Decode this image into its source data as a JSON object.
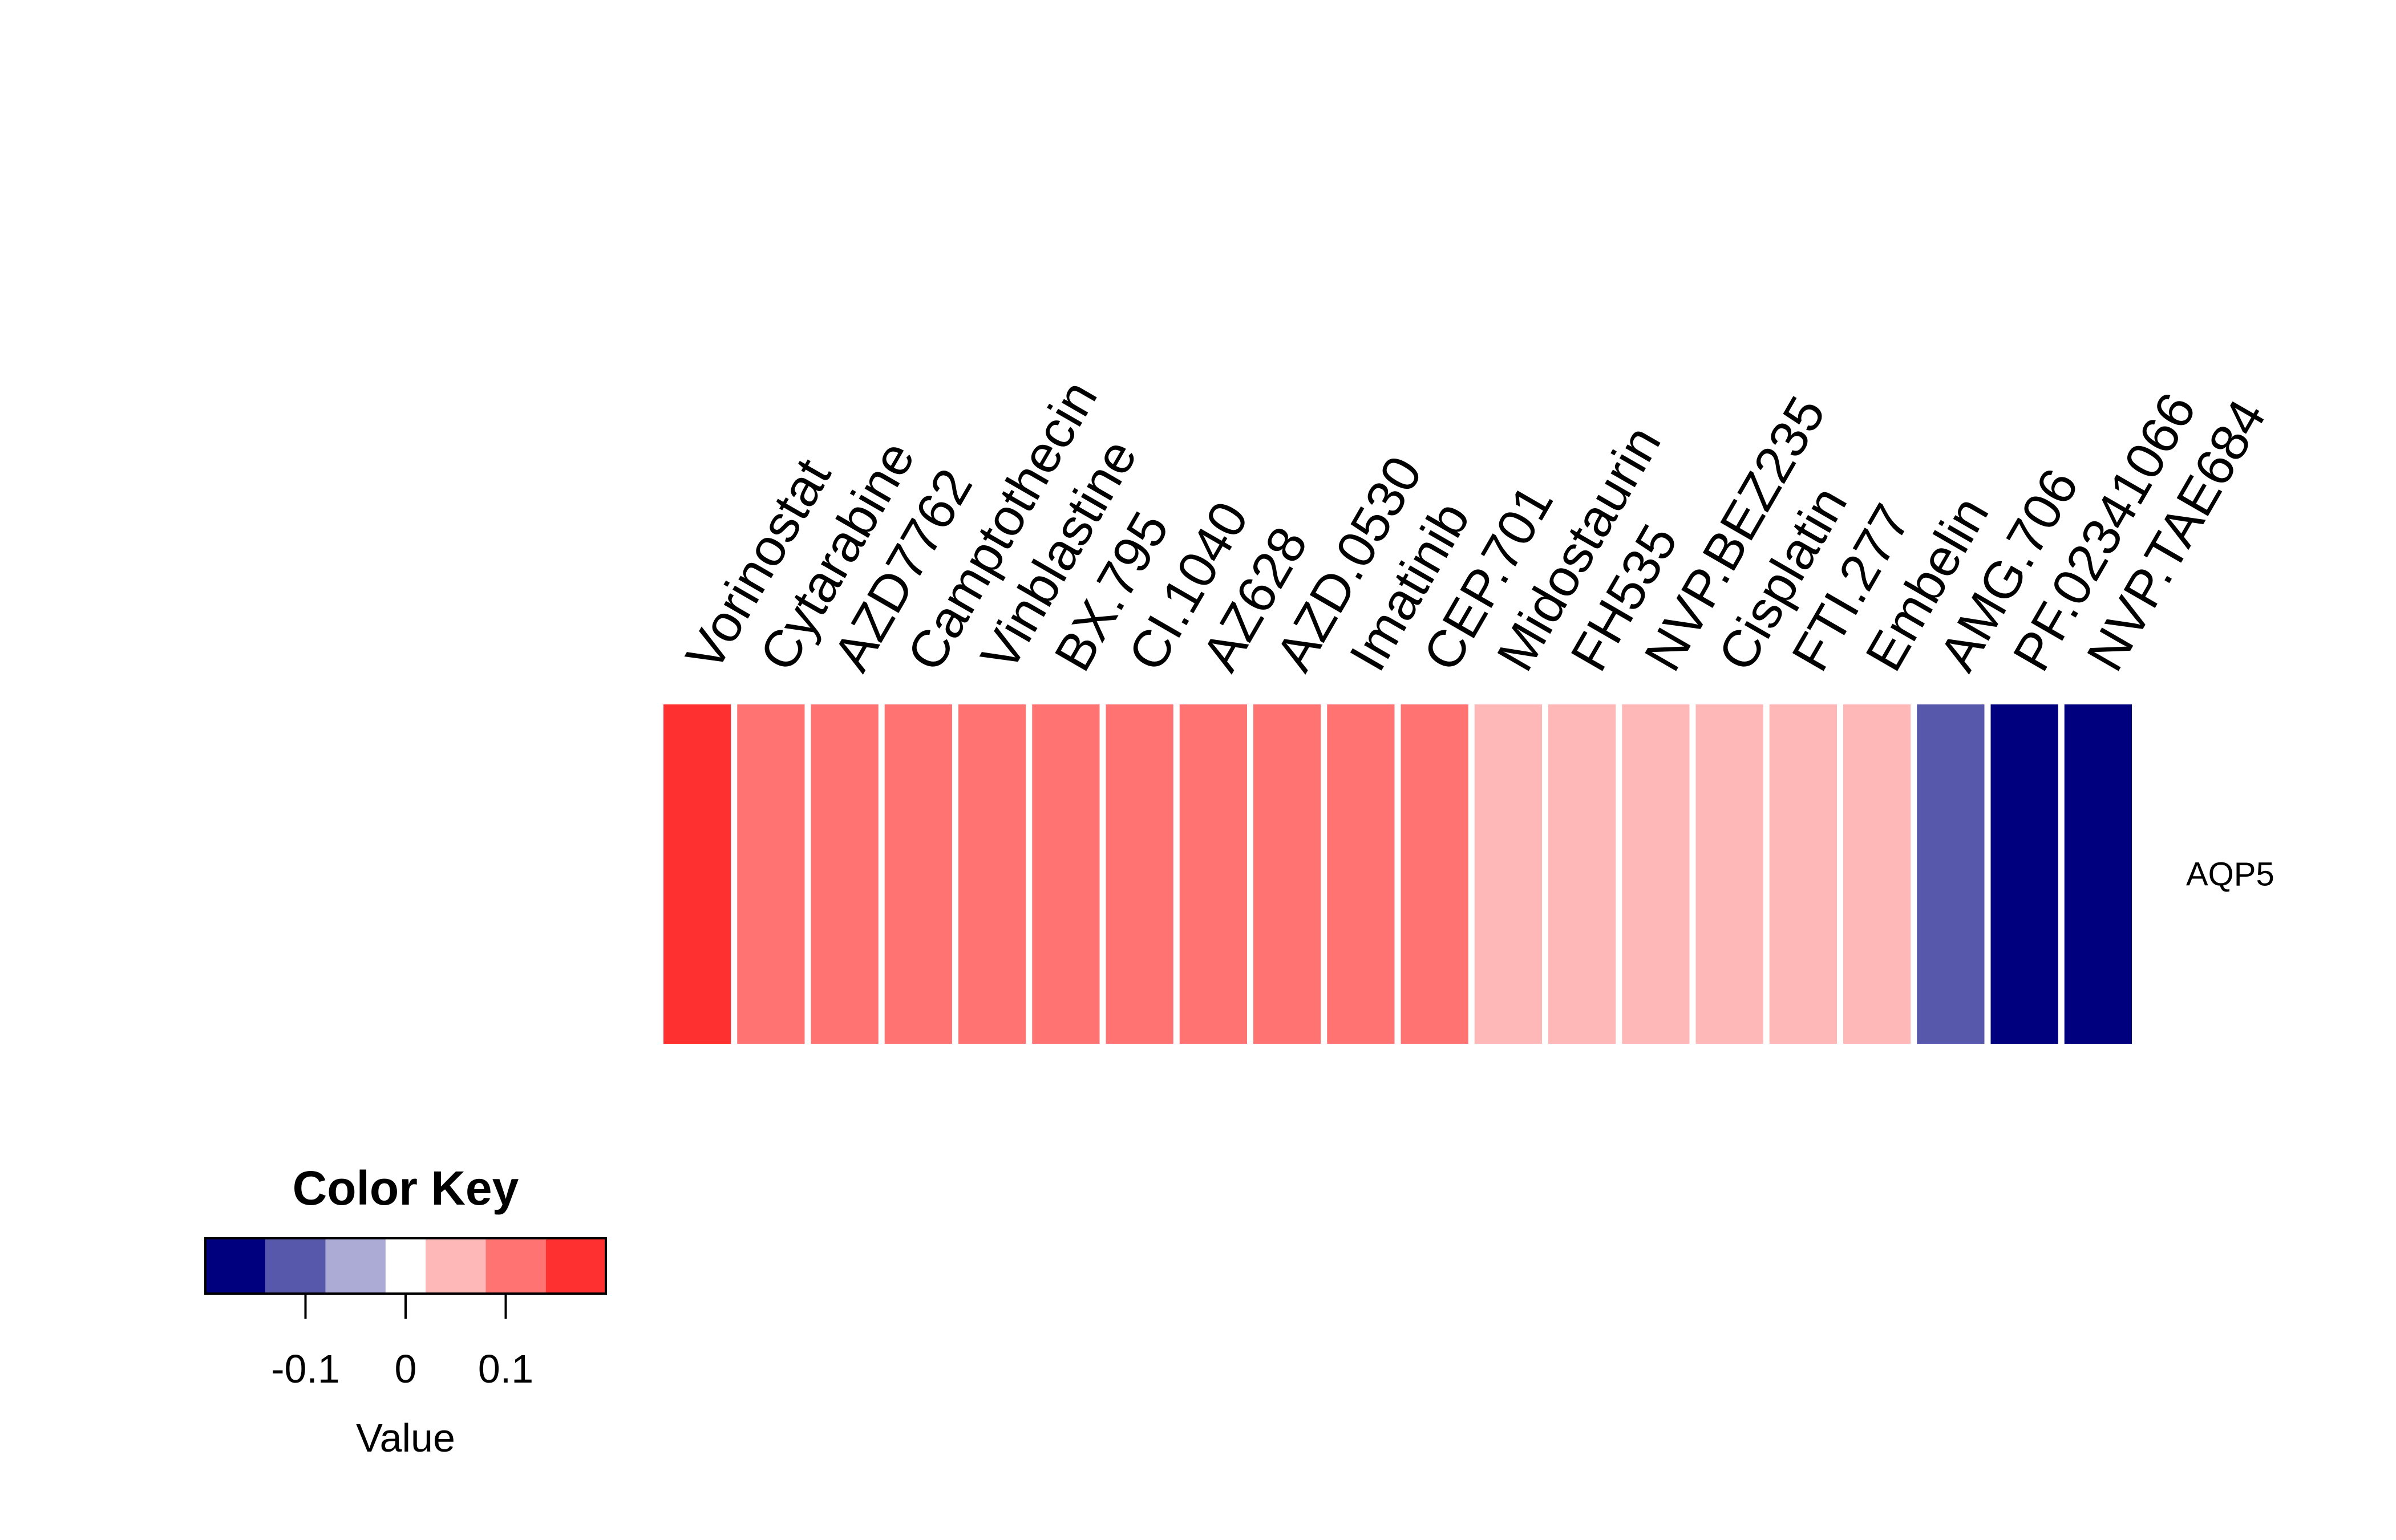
{
  "chart_data": {
    "type": "heatmap",
    "rows": [
      "AQP5"
    ],
    "columns": [
      "Vorinostat",
      "Cytarabine",
      "AZD7762",
      "Camptothecin",
      "Vinblastine",
      "BX.795",
      "CI.1040",
      "AZ628",
      "AZD.0530",
      "Imatinib",
      "CEP.701",
      "Midostaurin",
      "FH535",
      "NVP.BEZ235",
      "Cisplatin",
      "FTI.277",
      "Embelin",
      "AMG.706",
      "PF.02341066",
      "NVP.TAE684"
    ],
    "values": [
      [
        0.17,
        0.12,
        0.12,
        0.12,
        0.12,
        0.12,
        0.12,
        0.12,
        0.12,
        0.12,
        0.12,
        0.06,
        0.06,
        0.06,
        0.06,
        0.06,
        0.06,
        -0.09,
        -0.17,
        -0.17
      ]
    ],
    "color_key": {
      "title": "Color Key",
      "xlabel": "Value",
      "range": [
        -0.2,
        0.2
      ],
      "bins": [
        -0.2,
        -0.14,
        -0.08,
        -0.02,
        0.02,
        0.08,
        0.14,
        0.2
      ],
      "colors": [
        "#00007f",
        "#5757ab",
        "#ababd5",
        "#ffffff",
        "#ffb8b8",
        "#ff7373",
        "#ff3030"
      ],
      "ticks": [
        -0.1,
        0,
        0.1
      ],
      "tick_labels": [
        "-0.1",
        "0",
        "0.1"
      ]
    }
  }
}
